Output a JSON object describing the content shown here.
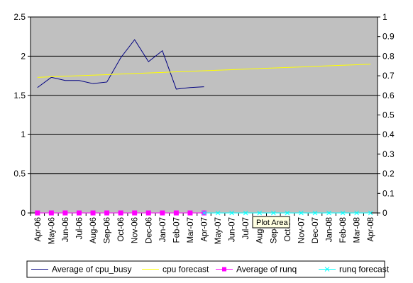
{
  "chart_data": {
    "type": "line",
    "categories": [
      "Apr-06",
      "May-06",
      "Jun-06",
      "Jul-06",
      "Aug-06",
      "Sep-06",
      "Oct-06",
      "Nov-06",
      "Dec-06",
      "Jan-07",
      "Feb-07",
      "Mar-07",
      "Apr-07",
      "May-07",
      "Jun-07",
      "Jul-07",
      "Aug-07",
      "Sep-07",
      "Oct-07",
      "Nov-07",
      "Dec-07",
      "Jan-08",
      "Feb-08",
      "Mar-08",
      "Apr-08"
    ],
    "y_left": {
      "range": [
        0,
        2.5
      ],
      "ticks": [
        "0",
        "0.5",
        "1",
        "1.5",
        "2",
        "2.5"
      ],
      "tick_values": [
        0,
        0.5,
        1,
        1.5,
        2,
        2.5
      ]
    },
    "y_right": {
      "range": [
        0,
        1
      ],
      "ticks": [
        "0",
        "0.1",
        "0.2",
        "0.3",
        "0.4",
        "0.5",
        "0.6",
        "0.7",
        "0.8",
        "0.9",
        "1"
      ],
      "tick_values": [
        0,
        0.1,
        0.2,
        0.3,
        0.4,
        0.5,
        0.6,
        0.7,
        0.8,
        0.9,
        1
      ]
    },
    "grid": true,
    "plot_background": "#c0c0c0",
    "legend_position": "bottom",
    "series": [
      {
        "name": "Average of cpu_busy",
        "axis": "left",
        "color": "#000080",
        "marker": "none",
        "values": [
          1.6,
          1.73,
          1.69,
          1.69,
          1.65,
          1.67,
          1.98,
          2.21,
          1.93,
          2.07,
          1.58,
          1.6,
          1.61,
          null,
          null,
          null,
          null,
          null,
          null,
          null,
          null,
          null,
          null,
          null,
          null
        ]
      },
      {
        "name": "cpu forecast",
        "axis": "left",
        "color": "#ffff00",
        "marker": "none",
        "values": [
          1.73,
          1.737,
          1.744,
          1.751,
          1.758,
          1.765,
          1.772,
          1.779,
          1.786,
          1.793,
          1.8,
          1.807,
          1.814,
          1.821,
          1.828,
          1.835,
          1.842,
          1.849,
          1.856,
          1.863,
          1.87,
          1.877,
          1.884,
          1.891,
          1.898
        ]
      },
      {
        "name": "Average of runq",
        "axis": "right",
        "color": "#ff00ff",
        "marker": "square",
        "values": [
          0,
          0,
          0,
          0,
          0,
          0,
          0,
          0,
          0,
          0,
          0,
          0,
          0,
          null,
          null,
          null,
          null,
          null,
          null,
          null,
          null,
          null,
          null,
          null,
          null
        ]
      },
      {
        "name": "runq forecast",
        "axis": "right",
        "color": "#00ffff",
        "marker": "x",
        "values": [
          null,
          null,
          null,
          null,
          null,
          null,
          null,
          null,
          null,
          null,
          null,
          null,
          0,
          0,
          0,
          0,
          0,
          0,
          0,
          0,
          0,
          0,
          0,
          0,
          0
        ]
      }
    ]
  },
  "tooltip": {
    "text": "Plot Area"
  }
}
